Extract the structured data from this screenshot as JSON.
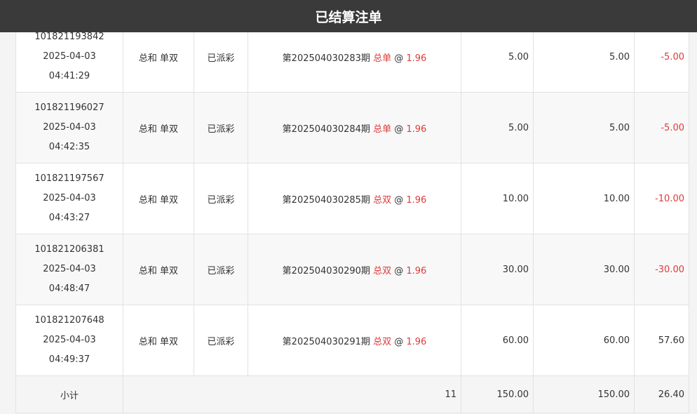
{
  "header": {
    "title": "已结算注单"
  },
  "colors": {
    "header_bg": "#3a3a3a",
    "negative": "#e03a3a",
    "highlight": "#e03a3a"
  },
  "rows": [
    {
      "id": "101821193842",
      "date": "2025-04-03",
      "time": "04:41:29",
      "game": "总和 单双",
      "status": "已派彩",
      "period": "第202504030283期",
      "pick": "总单",
      "at": "@",
      "odds": "1.96",
      "amount": "5.00",
      "valid": "5.00",
      "result": "-5.00"
    },
    {
      "id": "101821196027",
      "date": "2025-04-03",
      "time": "04:42:35",
      "game": "总和 单双",
      "status": "已派彩",
      "period": "第202504030284期",
      "pick": "总单",
      "at": "@",
      "odds": "1.96",
      "amount": "5.00",
      "valid": "5.00",
      "result": "-5.00"
    },
    {
      "id": "101821197567",
      "date": "2025-04-03",
      "time": "04:43:27",
      "game": "总和 单双",
      "status": "已派彩",
      "period": "第202504030285期",
      "pick": "总双",
      "at": "@",
      "odds": "1.96",
      "amount": "10.00",
      "valid": "10.00",
      "result": "-10.00"
    },
    {
      "id": "101821206381",
      "date": "2025-04-03",
      "time": "04:48:47",
      "game": "总和 单双",
      "status": "已派彩",
      "period": "第202504030290期",
      "pick": "总双",
      "at": "@",
      "odds": "1.96",
      "amount": "30.00",
      "valid": "30.00",
      "result": "-30.00"
    },
    {
      "id": "101821207648",
      "date": "2025-04-03",
      "time": "04:49:37",
      "game": "总和 单双",
      "status": "已派彩",
      "period": "第202504030291期",
      "pick": "总双",
      "at": "@",
      "odds": "1.96",
      "amount": "60.00",
      "valid": "60.00",
      "result": "57.60"
    }
  ],
  "subtotal": {
    "label": "小计",
    "count": "11",
    "amount": "150.00",
    "valid": "150.00",
    "result": "26.40"
  }
}
